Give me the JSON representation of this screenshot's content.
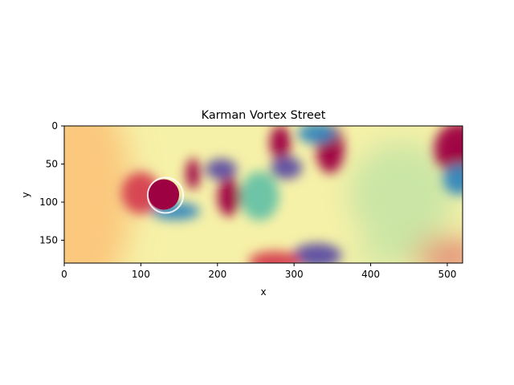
{
  "chart_data": {
    "type": "heatmap",
    "title": "Karman Vortex Street",
    "xlabel": "x",
    "ylabel": "y",
    "xlim": [
      0,
      520
    ],
    "ylim": [
      180,
      0
    ],
    "x_ticks": [
      0,
      100,
      200,
      300,
      400,
      500
    ],
    "y_ticks": [
      0,
      50,
      100,
      150
    ],
    "colormap": "Spectral",
    "grid": false,
    "obstacle": {
      "shape": "cylinder",
      "cx": 130,
      "cy": 90,
      "r": 20,
      "color": "#9e0142"
    },
    "features": [
      {
        "kind": "positive",
        "x": 168,
        "y": 63,
        "rx": 8,
        "ry": 18,
        "strength": 0.95
      },
      {
        "kind": "negative",
        "x": 205,
        "y": 57,
        "rx": 18,
        "ry": 12,
        "strength": 0.9
      },
      {
        "kind": "negative",
        "x": 145,
        "y": 112,
        "rx": 28,
        "ry": 10,
        "strength": 0.75
      },
      {
        "kind": "positive",
        "x": 215,
        "y": 93,
        "rx": 13,
        "ry": 22,
        "strength": 0.95
      },
      {
        "kind": "negative",
        "x": 255,
        "y": 92,
        "rx": 22,
        "ry": 28,
        "strength": 0.45
      },
      {
        "kind": "positive",
        "x": 282,
        "y": 22,
        "rx": 12,
        "ry": 20,
        "strength": 1.0
      },
      {
        "kind": "negative",
        "x": 290,
        "y": 55,
        "rx": 18,
        "ry": 13,
        "strength": 0.9
      },
      {
        "kind": "positive",
        "x": 347,
        "y": 30,
        "rx": 16,
        "ry": 28,
        "strength": 1.0
      },
      {
        "kind": "negative",
        "x": 330,
        "y": 10,
        "rx": 22,
        "ry": 12,
        "strength": 0.7
      },
      {
        "kind": "negative",
        "x": 330,
        "y": 170,
        "rx": 28,
        "ry": 14,
        "strength": 0.95
      },
      {
        "kind": "positive",
        "x": 275,
        "y": 178,
        "rx": 30,
        "ry": 12,
        "strength": 0.6
      },
      {
        "kind": "positive",
        "x": 100,
        "y": 88,
        "rx": 22,
        "ry": 24,
        "strength": 0.6
      },
      {
        "kind": "positive",
        "x": 515,
        "y": 30,
        "rx": 28,
        "ry": 30,
        "strength": 0.95
      },
      {
        "kind": "negative",
        "x": 515,
        "y": 70,
        "rx": 18,
        "ry": 18,
        "strength": 0.65
      },
      {
        "kind": "positive",
        "x": 500,
        "y": 170,
        "rx": 40,
        "ry": 20,
        "strength": 0.75
      },
      {
        "kind": "negative",
        "x": 420,
        "y": 168,
        "rx": 40,
        "ry": 12,
        "strength": 0.35
      },
      {
        "kind": "negative",
        "x": 440,
        "y": 90,
        "rx": 60,
        "ry": 60,
        "strength": 0.2
      },
      {
        "kind": "positive",
        "x": 20,
        "y": 90,
        "rx": 60,
        "ry": 120,
        "strength": 0.2
      }
    ]
  }
}
